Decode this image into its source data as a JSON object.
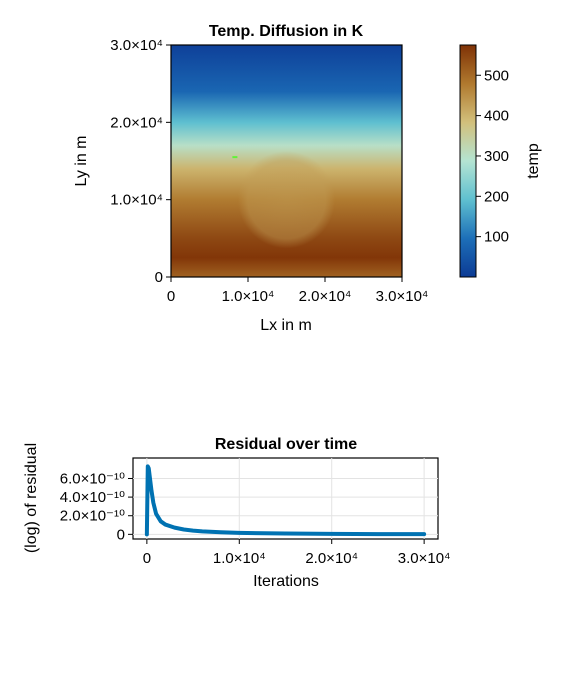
{
  "chart_data": [
    {
      "type": "heatmap",
      "title": "Temp. Diffusion in K",
      "xlabel": "Lx in m",
      "ylabel": "Ly in m",
      "xlim": [
        0,
        30000
      ],
      "ylim": [
        0,
        30000
      ],
      "xticks": [
        {
          "value": 0,
          "label": "0"
        },
        {
          "value": 10000,
          "label": "1.0×10⁴"
        },
        {
          "value": 20000,
          "label": "2.0×10⁴"
        },
        {
          "value": 30000,
          "label": "3.0×10⁴"
        }
      ],
      "yticks": [
        {
          "value": 0,
          "label": "0"
        },
        {
          "value": 10000,
          "label": "1.0×10⁴"
        },
        {
          "value": 20000,
          "label": "2.0×10⁴"
        },
        {
          "value": 30000,
          "label": "3.0×10⁴"
        }
      ],
      "grid": false,
      "temperature_profile_by_y": [
        {
          "y": 0,
          "temp": 510
        },
        {
          "y": 2500,
          "temp": 570
        },
        {
          "y": 5000,
          "temp": 545
        },
        {
          "y": 10000,
          "temp": 475
        },
        {
          "y": 14000,
          "temp": 400
        },
        {
          "y": 17000,
          "temp": 300
        },
        {
          "y": 20000,
          "temp": 190
        },
        {
          "y": 24000,
          "temp": 80
        },
        {
          "y": 30000,
          "temp": 10
        }
      ],
      "anomaly": {
        "center_x": 15000,
        "center_y": 10000,
        "radius": 6300,
        "temp": 430
      },
      "marker": {
        "x": 8300,
        "y": 15500,
        "color": "#5ff23a"
      },
      "colorbar": {
        "label": "temp",
        "range": [
          0,
          575
        ],
        "ticks": [
          {
            "value": 100,
            "label": "100"
          },
          {
            "value": 200,
            "label": "200"
          },
          {
            "value": 300,
            "label": "300"
          },
          {
            "value": 400,
            "label": "400"
          },
          {
            "value": 500,
            "label": "500"
          }
        ],
        "colormap": [
          "#0c3b95",
          "#1d6fb8",
          "#5fc0d0",
          "#b4e4d2",
          "#d2c07c",
          "#b0792e",
          "#7f3206"
        ]
      }
    },
    {
      "type": "line",
      "title": "Residual over time",
      "xlabel": "Iterations",
      "ylabel": "(log) of residual",
      "xlim": [
        -1500,
        31500
      ],
      "ylim": [
        -5e-11,
        8.2e-10
      ],
      "xticks": [
        {
          "value": 0,
          "label": "0"
        },
        {
          "value": 10000,
          "label": "1.0×10⁴"
        },
        {
          "value": 20000,
          "label": "2.0×10⁴"
        },
        {
          "value": 30000,
          "label": "3.0×10⁴"
        }
      ],
      "yticks": [
        {
          "value": 0,
          "label": "0"
        },
        {
          "value": 2e-10,
          "label": "2.0×10⁻¹⁰"
        },
        {
          "value": 4e-10,
          "label": "4.0×10⁻¹⁰"
        },
        {
          "value": 6e-10,
          "label": "6.0×10⁻¹⁰"
        }
      ],
      "grid": true,
      "series": [
        {
          "color": "#0072b2",
          "x": [
            0,
            100,
            200,
            300,
            500,
            700,
            1000,
            1500,
            2000,
            3000,
            4000,
            5000,
            6000,
            8000,
            10000,
            15000,
            20000,
            25000,
            30000
          ],
          "y": [
            0,
            7.3e-10,
            7.1e-10,
            6.3e-10,
            4.7e-10,
            3.4e-10,
            2.2e-10,
            1.4e-10,
            1.05e-10,
            7.2e-11,
            5.2e-11,
            4e-11,
            3.2e-11,
            2.2e-11,
            1.6e-11,
            9e-12,
            5e-12,
            3e-12,
            2e-12
          ]
        }
      ]
    }
  ]
}
